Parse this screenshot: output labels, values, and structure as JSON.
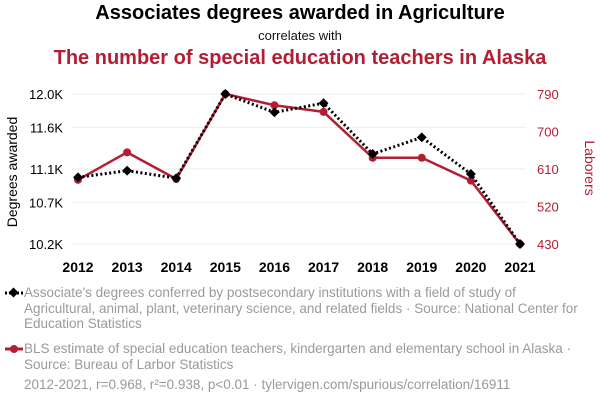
{
  "header": {
    "title": "Associates degrees awarded in Agriculture",
    "subtitle": "correlates with",
    "title2": "The number of special education teachers in Alaska"
  },
  "colors": {
    "series1": "#000000",
    "series2": "#b41e35",
    "grid": "#eeeeee",
    "muted_text": "#9a9a9a"
  },
  "chart_data": {
    "type": "line",
    "x": [
      2012,
      2013,
      2014,
      2015,
      2016,
      2017,
      2018,
      2019,
      2020,
      2021
    ],
    "left_axis": {
      "label": "Degrees awarded",
      "ticks": [
        "12.0K",
        "11.6K",
        "11.1K",
        "10.7K",
        "10.2K"
      ],
      "tick_values": [
        12000,
        11600,
        11100,
        10700,
        10200
      ],
      "range": [
        10200,
        12000
      ]
    },
    "right_axis": {
      "label": "Laborers",
      "ticks": [
        "790",
        "700",
        "610",
        "520",
        "430"
      ],
      "tick_values": [
        790,
        700,
        610,
        520,
        430
      ],
      "range": [
        430,
        790
      ]
    },
    "grid": true,
    "series": [
      {
        "axis": "left",
        "marker": "diamond",
        "style": "dotted",
        "values": [
          11000,
          11080,
          10990,
          12000,
          11780,
          11890,
          11280,
          11480,
          11040,
          10200
        ]
      },
      {
        "axis": "right",
        "marker": "circle",
        "style": "solid",
        "values": [
          584,
          650,
          586,
          790,
          763,
          747,
          637,
          637,
          582,
          430
        ]
      }
    ]
  },
  "legend": {
    "series1_text": "Associate's degrees conferred by postsecondary institutions with a field of study of Agricultural, animal, plant, veterinary science, and related fields · Source: National Center for Education Statistics",
    "series2_text": "BLS estimate of special education teachers, kindergarten and elementary school in Alaska · Source: Bureau of Larbor Statistics"
  },
  "footer": "2012-2021, r=0.968, r²=0.938, p<0.01 · tylervigen.com/spurious/correlation/16911"
}
